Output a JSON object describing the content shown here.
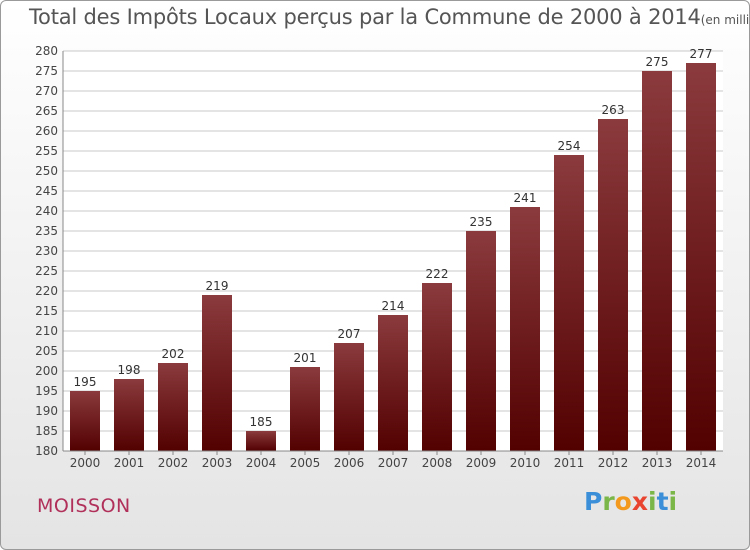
{
  "header": {
    "title": "Total des Impôts Locaux perçus par la Commune de 2000 à 2014",
    "unit": "(en milliers d'€)"
  },
  "footer": {
    "commune": "MOISSON",
    "logo_letters": [
      "P",
      "r",
      "o",
      "x",
      "i",
      "t",
      "i"
    ],
    "logo_colors": [
      "#3a8fd8",
      "#7ab648",
      "#f39a1e",
      "#e8442f",
      "#7ab648",
      "#3a8fd8",
      "#7ab648"
    ]
  },
  "chart_data": {
    "type": "bar",
    "title": "Total des Impôts Locaux perçus par la Commune de 2000 à 2014",
    "xlabel": "",
    "ylabel": "",
    "categories": [
      "2000",
      "2001",
      "2002",
      "2003",
      "2004",
      "2005",
      "2006",
      "2007",
      "2008",
      "2009",
      "2010",
      "2011",
      "2012",
      "2013",
      "2014"
    ],
    "values": [
      195,
      198,
      202,
      219,
      185,
      201,
      207,
      214,
      222,
      235,
      241,
      254,
      263,
      275,
      277
    ],
    "ylim": [
      180,
      280
    ],
    "yticks": [
      180,
      185,
      190,
      195,
      200,
      205,
      210,
      215,
      220,
      225,
      230,
      235,
      240,
      245,
      250,
      255,
      260,
      265,
      270,
      275,
      280
    ],
    "grid": true,
    "legend": "none",
    "bar_color_top": "#8b3a3d",
    "bar_color_bottom": "#520000"
  }
}
